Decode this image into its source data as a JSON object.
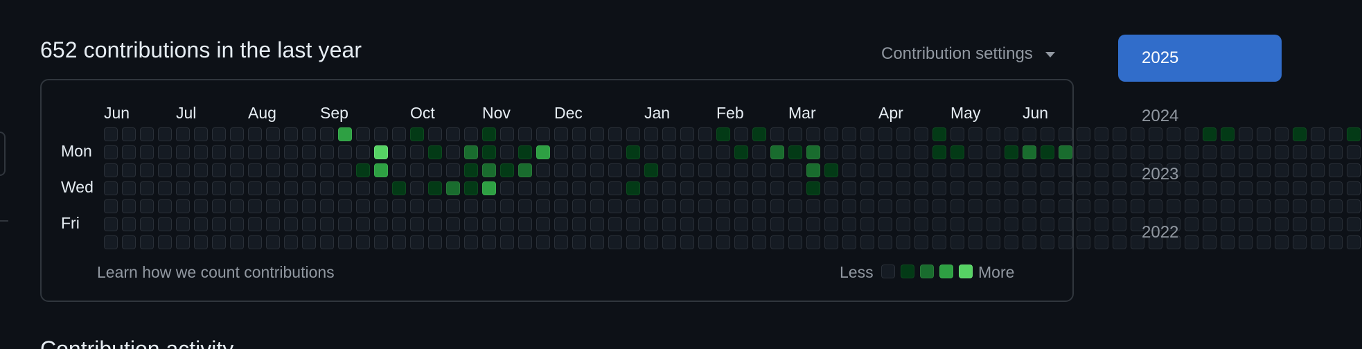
{
  "header": {
    "title": "652 contributions in the last year",
    "settings_label": "Contribution settings"
  },
  "graph": {
    "months": [
      "Jun",
      "Jul",
      "Aug",
      "Sep",
      "Oct",
      "Nov",
      "Dec",
      "Jan",
      "Feb",
      "Mar",
      "Apr",
      "May",
      "Jun"
    ],
    "days": [
      "Mon",
      "Wed",
      "Fri"
    ],
    "levels": [
      "0000000000000300010001000000000000101000000000100000000000000110001001",
      "0000000000000004001021013000010000010212000000110012120000000000000000",
      "0000000000000013000012120000001000000002100000000000000000000000000000",
      "0000000000000000101213000000010000000001000000000000000000000000000000",
      "0000000000000000000000000000000000000000000000000000000000000000000000",
      "0000000000000000000000000000000000000000000000000000000000000000000000",
      "0000000000000000000000000000000000000000000000000000000000000000000000"
    ],
    "learn_link": "Learn how we count contributions",
    "legend_less": "Less",
    "legend_more": "More",
    "legend_colors": [
      "#151b23",
      "#033a16",
      "#196c2e",
      "#2ea043",
      "#56d364"
    ]
  },
  "years": {
    "selected": "2025",
    "items": [
      "2025",
      "2024",
      "2023",
      "2022"
    ]
  },
  "activity": {
    "title": "Contribution activity"
  }
}
